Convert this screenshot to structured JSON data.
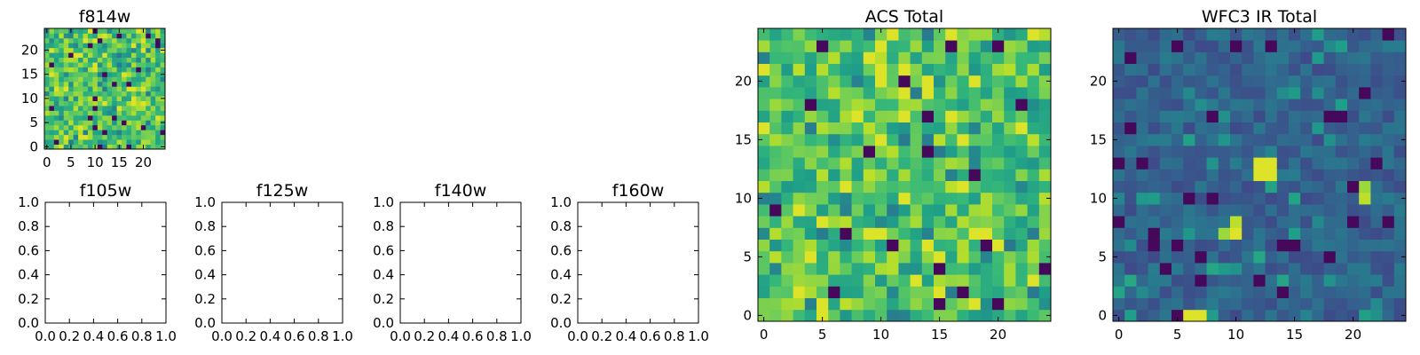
{
  "chart_data": [
    {
      "id": "f814w",
      "type": "heatmap",
      "title": "f814w",
      "grid_size": 25,
      "xticks": [
        0,
        5,
        10,
        15,
        20
      ],
      "yticks": [
        0,
        5,
        10,
        15,
        20
      ],
      "xlim": [
        -0.5,
        24.5
      ],
      "ylim": [
        -0.5,
        24.5
      ],
      "value_range": [
        0,
        1
      ],
      "colormap": "viridis",
      "empty": false
    },
    {
      "id": "f105w",
      "type": "heatmap",
      "title": "f105w",
      "xticks": [
        0.0,
        0.2,
        0.4,
        0.6,
        0.8,
        1.0
      ],
      "yticks": [
        0.0,
        0.2,
        0.4,
        0.6,
        0.8,
        1.0
      ],
      "xlim": [
        0,
        1
      ],
      "ylim": [
        0,
        1
      ],
      "empty": true
    },
    {
      "id": "f125w",
      "type": "heatmap",
      "title": "f125w",
      "xticks": [
        0.0,
        0.2,
        0.4,
        0.6,
        0.8,
        1.0
      ],
      "yticks": [
        0.0,
        0.2,
        0.4,
        0.6,
        0.8,
        1.0
      ],
      "xlim": [
        0,
        1
      ],
      "ylim": [
        0,
        1
      ],
      "empty": true
    },
    {
      "id": "f140w",
      "type": "heatmap",
      "title": "f140w",
      "xticks": [
        0.0,
        0.2,
        0.4,
        0.6,
        0.8,
        1.0
      ],
      "yticks": [
        0.0,
        0.2,
        0.4,
        0.6,
        0.8,
        1.0
      ],
      "xlim": [
        0,
        1
      ],
      "ylim": [
        0,
        1
      ],
      "empty": true
    },
    {
      "id": "f160w",
      "type": "heatmap",
      "title": "f160w",
      "xticks": [
        0.0,
        0.2,
        0.4,
        0.6,
        0.8,
        1.0
      ],
      "yticks": [
        0.0,
        0.2,
        0.4,
        0.6,
        0.8,
        1.0
      ],
      "xlim": [
        0,
        1
      ],
      "ylim": [
        0,
        1
      ],
      "empty": true
    },
    {
      "id": "acs-total",
      "type": "heatmap",
      "title": "ACS Total",
      "grid_size": 25,
      "xticks": [
        0,
        5,
        10,
        15,
        20
      ],
      "yticks": [
        0,
        5,
        10,
        15,
        20
      ],
      "xlim": [
        -0.5,
        24.5
      ],
      "ylim": [
        -0.5,
        24.5
      ],
      "value_range": [
        0,
        1
      ],
      "colormap": "viridis",
      "empty": false
    },
    {
      "id": "wfc3-ir-total",
      "type": "heatmap",
      "title": "WFC3 IR Total",
      "grid_size": 25,
      "xticks": [
        0,
        5,
        10,
        15,
        20
      ],
      "yticks": [
        0,
        5,
        10,
        15,
        20
      ],
      "xlim": [
        -0.5,
        24.5
      ],
      "ylim": [
        -0.5,
        24.5
      ],
      "value_range": [
        0,
        1
      ],
      "colormap": "viridis",
      "empty": false,
      "bright_cells": [
        {
          "x": 12,
          "y": 12,
          "value": 0.95
        },
        {
          "x": 12,
          "y": 13,
          "value": 0.95
        },
        {
          "x": 13,
          "y": 12,
          "value": 0.95
        },
        {
          "x": 13,
          "y": 13,
          "value": 0.95
        },
        {
          "x": 10,
          "y": 7,
          "value": 0.95
        },
        {
          "x": 10,
          "y": 8,
          "value": 0.9
        },
        {
          "x": 9,
          "y": 7,
          "value": 0.85
        },
        {
          "x": 21,
          "y": 10,
          "value": 0.9
        },
        {
          "x": 21,
          "y": 11,
          "value": 0.85
        },
        {
          "x": 6,
          "y": -0.3,
          "value": 0.95
        },
        {
          "x": 7,
          "y": -0.3,
          "value": 0.95
        }
      ]
    }
  ]
}
